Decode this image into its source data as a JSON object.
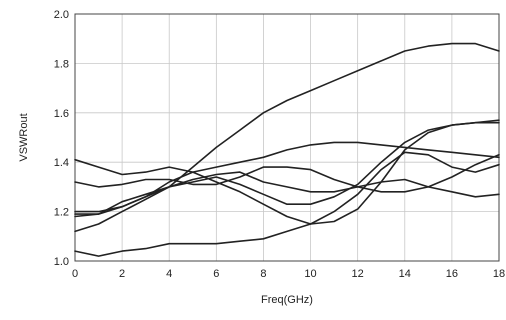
{
  "chart_data": {
    "type": "line",
    "title": "",
    "xlabel": "Freq(GHz)",
    "ylabel": "VSWRout",
    "xlim": [
      0,
      18
    ],
    "ylim": [
      1.0,
      2.0
    ],
    "x_ticks": [
      0,
      2,
      4,
      6,
      8,
      10,
      12,
      14,
      16,
      18
    ],
    "x_tick_labels": [
      "0",
      "2",
      "4",
      "6",
      "8",
      "10",
      "12",
      "14",
      "16",
      "18"
    ],
    "y_ticks": [
      1.0,
      1.2,
      1.4,
      1.6,
      1.8,
      2.0
    ],
    "y_tick_labels": [
      "1.0",
      "1.2",
      "1.4",
      "1.6",
      "1.8",
      "2.0"
    ],
    "grid": true,
    "line_color": "#222222",
    "grid_color": "#c8c8c8",
    "series": [
      {
        "x": [
          0,
          1,
          2,
          3,
          4,
          5,
          6,
          7,
          8,
          9,
          10,
          11,
          12,
          13,
          14,
          15,
          16,
          17,
          18
        ],
        "y": [
          1.19,
          1.19,
          1.22,
          1.26,
          1.3,
          1.38,
          1.46,
          1.53,
          1.6,
          1.65,
          1.69,
          1.73,
          1.77,
          1.81,
          1.85,
          1.87,
          1.88,
          1.88,
          1.85
        ]
      },
      {
        "x": [
          0,
          1,
          2,
          3,
          4,
          5,
          6,
          7,
          8,
          9,
          10,
          11,
          12,
          13,
          14,
          15,
          16,
          17,
          18
        ],
        "y": [
          1.41,
          1.38,
          1.35,
          1.36,
          1.38,
          1.36,
          1.32,
          1.28,
          1.23,
          1.18,
          1.15,
          1.16,
          1.21,
          1.32,
          1.45,
          1.52,
          1.55,
          1.56,
          1.57
        ]
      },
      {
        "x": [
          0,
          1,
          2,
          3,
          4,
          5,
          6,
          7,
          8,
          9,
          10,
          11,
          12,
          13,
          14,
          15,
          16,
          17,
          18
        ],
        "y": [
          1.32,
          1.3,
          1.31,
          1.33,
          1.33,
          1.31,
          1.31,
          1.34,
          1.38,
          1.38,
          1.37,
          1.33,
          1.3,
          1.28,
          1.28,
          1.3,
          1.34,
          1.39,
          1.43
        ]
      },
      {
        "x": [
          0,
          1,
          2,
          3,
          4,
          5,
          6,
          7,
          8,
          9,
          10,
          11,
          12,
          13,
          14,
          15,
          16,
          17,
          18
        ],
        "y": [
          1.18,
          1.19,
          1.24,
          1.27,
          1.3,
          1.32,
          1.34,
          1.31,
          1.27,
          1.23,
          1.23,
          1.26,
          1.31,
          1.4,
          1.48,
          1.53,
          1.55,
          1.56,
          1.56
        ]
      },
      {
        "x": [
          0,
          1,
          2,
          3,
          4,
          5,
          6,
          7,
          8,
          9,
          10,
          11,
          12,
          13,
          14,
          15,
          16,
          17,
          18
        ],
        "y": [
          1.12,
          1.15,
          1.2,
          1.25,
          1.3,
          1.33,
          1.35,
          1.36,
          1.32,
          1.3,
          1.28,
          1.28,
          1.3,
          1.32,
          1.33,
          1.3,
          1.28,
          1.26,
          1.27
        ]
      },
      {
        "x": [
          0,
          1,
          2,
          3,
          4,
          5,
          6,
          7,
          8,
          9,
          10,
          11,
          12,
          13,
          14,
          15,
          16,
          17,
          18
        ],
        "y": [
          1.04,
          1.02,
          1.04,
          1.05,
          1.07,
          1.07,
          1.07,
          1.08,
          1.09,
          1.12,
          1.15,
          1.2,
          1.27,
          1.37,
          1.44,
          1.43,
          1.38,
          1.36,
          1.39
        ]
      },
      {
        "x": [
          0,
          1,
          2,
          3,
          4,
          5,
          6,
          7,
          8,
          9,
          10,
          11,
          12,
          13,
          14,
          15,
          16,
          17,
          18
        ],
        "y": [
          1.2,
          1.2,
          1.22,
          1.26,
          1.32,
          1.36,
          1.38,
          1.4,
          1.42,
          1.45,
          1.47,
          1.48,
          1.48,
          1.47,
          1.46,
          1.45,
          1.44,
          1.43,
          1.42
        ]
      }
    ]
  }
}
